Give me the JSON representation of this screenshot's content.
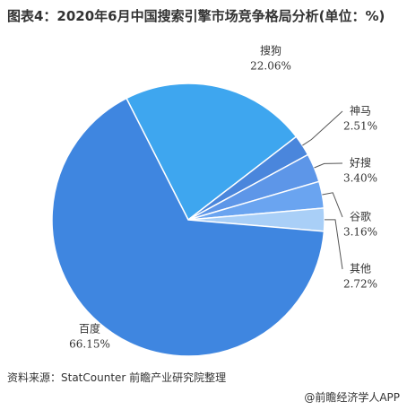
{
  "chart_data": {
    "type": "pie",
    "title": "图表4：2020年6月中国搜索引擎市场竞争格局分析(单位：%)",
    "categories": [
      "搜狗",
      "神马",
      "好搜",
      "谷歌",
      "其他",
      "百度"
    ],
    "values": [
      22.06,
      2.51,
      3.4,
      3.16,
      2.72,
      66.15
    ],
    "value_labels": [
      "22.06%",
      "2.51%",
      "3.40%",
      "3.16%",
      "2.72%",
      "66.15%"
    ],
    "colors": [
      "#3ea6ef",
      "#4a86dc",
      "#5d96e8",
      "#6aa4f0",
      "#a9cff7",
      "#3f86e0"
    ],
    "source": "资料来源：StatCounter 前瞻产业研究院整理",
    "brand": "@前瞻经济学人APP"
  }
}
